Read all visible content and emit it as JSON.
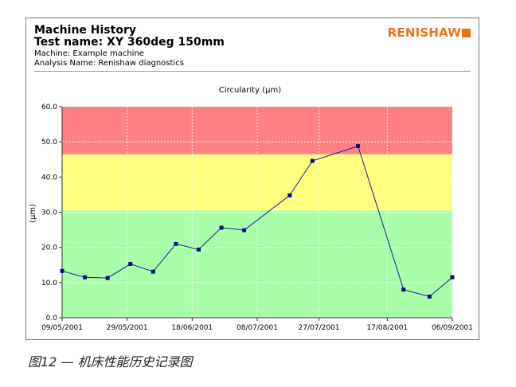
{
  "header": {
    "title": "Machine History",
    "test_name": "Test name: XY 360deg 150mm",
    "machine": "Machine: Example machine",
    "analysis": "Analysis Name: Renishaw diagnostics",
    "logo_text": "RENISHAW"
  },
  "caption": "图12 — 机床性能历史记录图",
  "colors": {
    "zone_red": "#ff8080",
    "zone_yellow": "#ffff80",
    "zone_green": "#a8ffa8",
    "line": "#1a1a9e",
    "marker": "#0a0a7a",
    "logo": "#e8731b"
  },
  "chart_data": {
    "type": "line",
    "title": "Circularity (µm)",
    "ylabel": "(µm)",
    "ylim": [
      0,
      60
    ],
    "yticks": [
      "0.0",
      "10.0",
      "20.0",
      "30.0",
      "40.0",
      "50.0",
      "60.0"
    ],
    "xlim": [
      "2001-05-09",
      "2001-09-06"
    ],
    "xticks": [
      "09/05/2001",
      "29/05/2001",
      "18/06/2001",
      "08/07/2001",
      "27/07/2001",
      "17/08/2001",
      "06/09/2001"
    ],
    "grid": true,
    "zones": [
      {
        "from": 0,
        "to": 30.5,
        "color": "green"
      },
      {
        "from": 30.5,
        "to": 46.5,
        "color": "yellow"
      },
      {
        "from": 46.5,
        "to": 60,
        "color": "red"
      }
    ],
    "series": [
      {
        "x": [
          "2001-05-09",
          "2001-05-16",
          "2001-05-23",
          "2001-05-30",
          "2001-06-06",
          "2001-06-13",
          "2001-06-20",
          "2001-06-27",
          "2001-07-04",
          "2001-07-18",
          "2001-07-25",
          "2001-08-08",
          "2001-08-22",
          "2001-08-30",
          "2001-09-06"
        ],
        "y": [
          13.3,
          11.5,
          11.3,
          15.3,
          13.1,
          21.0,
          19.4,
          25.6,
          24.9,
          34.8,
          44.6,
          48.8,
          8.0,
          6.0,
          11.5
        ]
      }
    ]
  }
}
